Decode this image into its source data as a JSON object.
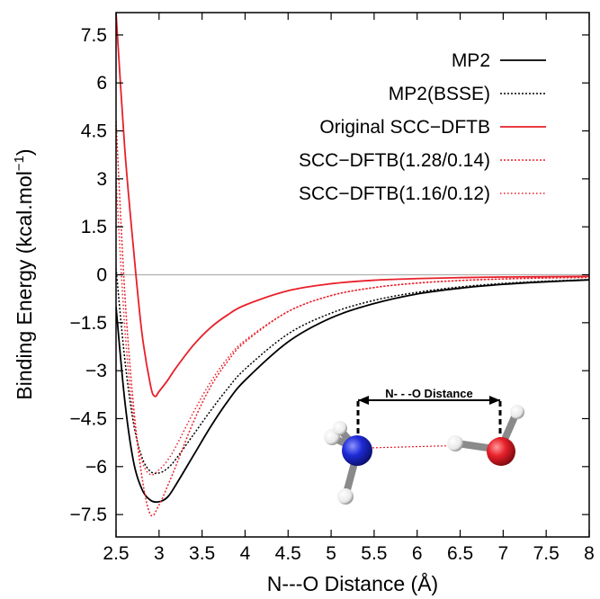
{
  "chart_data": {
    "type": "line",
    "xlabel": "N---O Distance (Å)",
    "ylabel_main": "Binding Energy (kcal.mol",
    "ylabel_sup": "−1",
    "ylabel_close": ")",
    "xlim": [
      2.5,
      8
    ],
    "ylim": [
      -8.2,
      8.2
    ],
    "xticks": [
      2.5,
      3,
      3.5,
      4,
      4.5,
      5,
      5.5,
      6,
      6.5,
      7,
      7.5,
      8
    ],
    "xtick_labels": [
      "2.5",
      "3",
      "3.5",
      "4",
      "4.5",
      "5",
      "5.5",
      "6",
      "6.5",
      "7",
      "7.5",
      "8"
    ],
    "yticks": [
      7.5,
      6,
      4.5,
      3,
      1.5,
      0,
      -1.5,
      -3,
      -4.5,
      -6,
      -7.5
    ],
    "ytick_labels": [
      "7.5",
      "6",
      "4.5",
      "3",
      "1.5",
      "0",
      "−1.5",
      "−3",
      "−4.5",
      "−6",
      "−7.5"
    ],
    "zero_line": true,
    "legend_position": "top-right",
    "series": [
      {
        "name": "MP2",
        "color": "#000000",
        "dash": "solid",
        "x": [
          2.5,
          2.6,
          2.7,
          2.8,
          2.9,
          3.0,
          3.1,
          3.2,
          3.4,
          3.6,
          3.8,
          4.0,
          4.5,
          5.0,
          5.5,
          6.0,
          6.5,
          7.0,
          7.5,
          8.0
        ],
        "y": [
          -1.0,
          -3.9,
          -5.8,
          -6.7,
          -7.05,
          -7.1,
          -6.95,
          -6.55,
          -5.65,
          -4.75,
          -3.95,
          -3.3,
          -2.1,
          -1.35,
          -0.9,
          -0.6,
          -0.42,
          -0.3,
          -0.22,
          -0.16
        ]
      },
      {
        "name": "MP2(BSSE)",
        "color": "#000000",
        "dash": "dotted",
        "x": [
          2.5,
          2.6,
          2.7,
          2.8,
          2.9,
          3.0,
          3.1,
          3.2,
          3.4,
          3.6,
          3.8,
          4.0,
          4.5,
          5.0,
          5.5,
          6.0,
          6.5,
          7.0,
          7.5,
          8.0
        ],
        "y": [
          0.2,
          -2.6,
          -4.6,
          -5.7,
          -6.15,
          -6.2,
          -6.05,
          -5.75,
          -5.0,
          -4.25,
          -3.55,
          -2.95,
          -1.85,
          -1.2,
          -0.8,
          -0.55,
          -0.38,
          -0.27,
          -0.2,
          -0.15
        ]
      },
      {
        "name": "Original SCC−DFTB",
        "color": "#e8202a",
        "dash": "solid",
        "x": [
          2.5,
          2.6,
          2.7,
          2.8,
          2.9,
          2.95,
          3.0,
          3.1,
          3.2,
          3.4,
          3.6,
          3.8,
          4.0,
          4.5,
          5.0,
          5.5,
          6.0,
          6.5,
          7.0,
          7.5,
          8.0
        ],
        "y": [
          8.2,
          4.0,
          0.9,
          -1.8,
          -3.45,
          -3.8,
          -3.65,
          -3.3,
          -2.9,
          -2.2,
          -1.65,
          -1.25,
          -0.95,
          -0.5,
          -0.28,
          -0.17,
          -0.12,
          -0.09,
          -0.07,
          -0.06,
          -0.05
        ]
      },
      {
        "name": "SCC−DFTB(1.28/0.14)",
        "color": "#e8202a",
        "dash": "dotted",
        "x": [
          2.5,
          2.6,
          2.7,
          2.8,
          2.9,
          3.0,
          3.1,
          3.2,
          3.4,
          3.6,
          3.8,
          4.0,
          4.5,
          5.0,
          5.5,
          6.0,
          6.5,
          7.0,
          7.5,
          8.0
        ],
        "y": [
          4.8,
          -0.5,
          -4.0,
          -6.3,
          -7.5,
          -7.2,
          -6.6,
          -5.95,
          -4.6,
          -3.5,
          -2.7,
          -2.1,
          -1.15,
          -0.65,
          -0.4,
          -0.26,
          -0.18,
          -0.13,
          -0.1,
          -0.08
        ]
      },
      {
        "name": "SCC−DFTB(1.16/0.12)",
        "color": "#e8202a",
        "dash": "finedot",
        "x": [
          2.5,
          2.6,
          2.7,
          2.8,
          2.9,
          3.0,
          3.1,
          3.2,
          3.4,
          3.6,
          3.8,
          4.0,
          4.5,
          5.0,
          5.5,
          6.0,
          6.5,
          7.0,
          7.5,
          8.0
        ],
        "y": [
          3.0,
          -1.6,
          -4.4,
          -5.8,
          -6.25,
          -6.1,
          -5.8,
          -5.35,
          -4.3,
          -3.35,
          -2.6,
          -2.05,
          -1.15,
          -0.65,
          -0.4,
          -0.26,
          -0.18,
          -0.13,
          -0.1,
          -0.08
        ]
      }
    ],
    "inset": {
      "label": "N- - -O Distance",
      "atoms": {
        "nitrogen_color": "#1f2bd6",
        "oxygen_color": "#e8202a",
        "hydrogen_color": "#ffffff"
      }
    }
  }
}
